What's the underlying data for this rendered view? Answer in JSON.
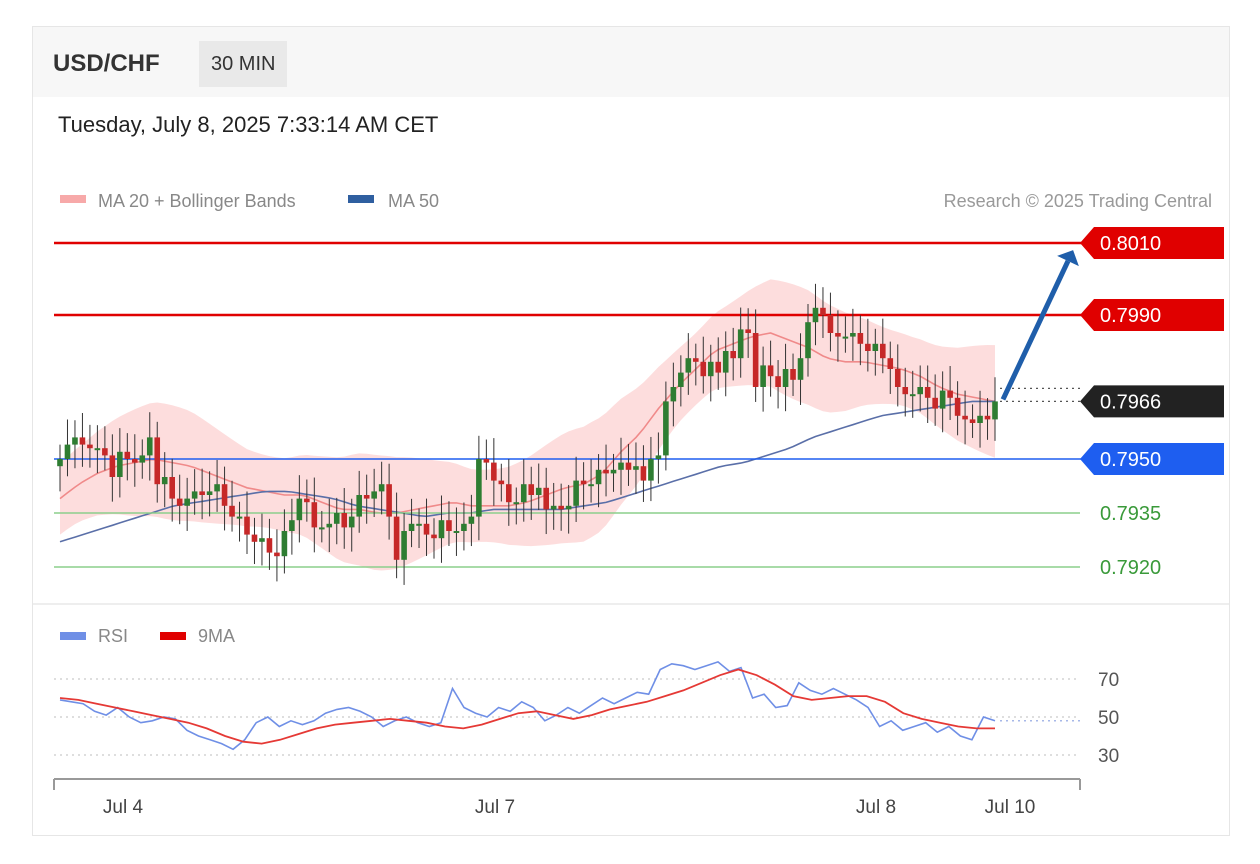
{
  "header": {
    "symbol": "USD/CHF",
    "interval": "30 MIN",
    "datetime": "Tuesday, July 8, 2025 7:33:14 AM CET"
  },
  "credit": "Research © 2025 Trading Central",
  "legend": {
    "ma20": "MA 20 + Bollinger Bands",
    "ma50": "MA 50",
    "rsi": "RSI",
    "rsi_ma": "9MA"
  },
  "colors": {
    "up_candle": "#2e7d32",
    "down_candle": "#c62828",
    "resistance": "#e00000",
    "support": "#1e5ef0",
    "target": "#1f5eaa",
    "minor_support": "#8ccf8c",
    "last_price": "#222222",
    "bollinger_fill": "#fdd9d9",
    "ma20_line": "#f08a8a",
    "ma50_line": "#5a6fa8",
    "rsi_line": "#6f8fe6",
    "rsi_ma_line": "#e53935"
  },
  "chart_data": [
    {
      "type": "candlestick",
      "title": "USD/CHF 30 MIN",
      "ylim": [
        0.7913,
        0.8017
      ],
      "x_tick_labels": [
        "Jul 4",
        "Jul 7",
        "Jul 8",
        "Jul 10"
      ],
      "levels": [
        {
          "label": "0.8010",
          "value": 0.801,
          "kind": "resistance"
        },
        {
          "label": "0.7990",
          "value": 0.799,
          "kind": "resistance"
        },
        {
          "label": "0.7966",
          "value": 0.7966,
          "kind": "last"
        },
        {
          "label": "0.7950",
          "value": 0.795,
          "kind": "support"
        },
        {
          "label": "0.7935",
          "value": 0.7935,
          "kind": "minor"
        },
        {
          "label": "0.7920",
          "value": 0.792,
          "kind": "minor"
        }
      ],
      "target_arrow": {
        "from": 0.7966,
        "to": 0.801
      },
      "close": [
        0.795,
        0.7954,
        0.7956,
        0.7954,
        0.7953,
        0.7953,
        0.7951,
        0.7945,
        0.7952,
        0.795,
        0.7949,
        0.7951,
        0.7956,
        0.7943,
        0.7945,
        0.7939,
        0.7937,
        0.7939,
        0.7941,
        0.794,
        0.7941,
        0.7943,
        0.7937,
        0.7934,
        0.7934,
        0.7929,
        0.7927,
        0.7928,
        0.7924,
        0.7923,
        0.793,
        0.7933,
        0.7939,
        0.7938,
        0.7931,
        0.7931,
        0.7932,
        0.7935,
        0.7931,
        0.7934,
        0.794,
        0.7939,
        0.7941,
        0.7943,
        0.7934,
        0.7922,
        0.793,
        0.7932,
        0.7932,
        0.7929,
        0.7928,
        0.7933,
        0.793,
        0.793,
        0.7932,
        0.7934,
        0.795,
        0.7949,
        0.7944,
        0.7943,
        0.7938,
        0.7938,
        0.7943,
        0.794,
        0.7942,
        0.7936,
        0.7937,
        0.7936,
        0.7937,
        0.7944,
        0.7943,
        0.7943,
        0.7947,
        0.7946,
        0.7947,
        0.7949,
        0.7947,
        0.7948,
        0.7944,
        0.795,
        0.7951,
        0.7966,
        0.797,
        0.7974,
        0.7978,
        0.7977,
        0.7973,
        0.7977,
        0.7974,
        0.798,
        0.7978,
        0.7986,
        0.7985,
        0.797,
        0.7976,
        0.7973,
        0.797,
        0.7975,
        0.7972,
        0.7978,
        0.7988,
        0.7992,
        0.799,
        0.7985,
        0.7984,
        0.7984,
        0.7985,
        0.7982,
        0.798,
        0.7982,
        0.7978,
        0.7975,
        0.797,
        0.7968,
        0.7968,
        0.797,
        0.7967,
        0.7964,
        0.7969,
        0.7967,
        0.7962,
        0.7961,
        0.796,
        0.7962,
        0.7961,
        0.7966
      ],
      "series": [
        {
          "name": "MA 20",
          "values": [
            0.7939,
            0.7943,
            0.7946,
            0.7948,
            0.7949,
            0.795,
            0.7949,
            0.7948,
            0.7946,
            0.7944,
            0.7942,
            0.7941,
            0.794,
            0.794,
            0.7938,
            0.7936,
            0.7936,
            0.7935,
            0.7935,
            0.7936,
            0.7937,
            0.7938,
            0.7937,
            0.7937,
            0.7937,
            0.7938,
            0.794,
            0.7942,
            0.7943,
            0.7946,
            0.7952,
            0.7957,
            0.7964,
            0.797,
            0.7975,
            0.798,
            0.7982,
            0.7984,
            0.7985,
            0.7983,
            0.7981,
            0.7978,
            0.7977,
            0.7977,
            0.7976,
            0.7975,
            0.7973,
            0.797,
            0.7968,
            0.7967,
            0.7966
          ]
        },
        {
          "name": "MA 50",
          "values": [
            0.7927,
            0.7929,
            0.7931,
            0.7933,
            0.7935,
            0.7937,
            0.7938,
            0.7939,
            0.794,
            0.7941,
            0.7941,
            0.794,
            0.7939,
            0.7937,
            0.7936,
            0.7935,
            0.7934,
            0.7935,
            0.7935,
            0.7936,
            0.7936,
            0.7936,
            0.7936,
            0.7937,
            0.7938,
            0.794,
            0.7942,
            0.7944,
            0.7946,
            0.7948,
            0.7949,
            0.7951,
            0.7953,
            0.7956,
            0.7958,
            0.796,
            0.7962,
            0.7963,
            0.7964,
            0.7965,
            0.7966,
            0.7966
          ]
        },
        {
          "name": "RSI",
          "values": [
            59,
            58,
            57,
            53,
            51,
            55,
            50,
            47,
            48,
            50,
            49,
            43,
            40,
            38,
            36,
            33,
            38,
            47,
            50,
            45,
            48,
            46,
            48,
            52,
            54,
            55,
            53,
            50,
            45,
            48,
            50,
            47,
            45,
            47,
            65,
            55,
            52,
            50,
            55,
            53,
            58,
            55,
            48,
            51,
            55,
            52,
            56,
            60,
            57,
            60,
            63,
            62,
            75,
            78,
            77,
            75,
            77,
            79,
            74,
            76,
            60,
            62,
            55,
            56,
            68,
            64,
            62,
            65,
            62,
            59,
            55,
            45,
            48,
            43,
            45,
            47,
            42,
            45,
            40,
            38,
            50,
            48
          ]
        },
        {
          "name": "9MA",
          "values": [
            60,
            59,
            57,
            55,
            53,
            51,
            49,
            47,
            44,
            40,
            37,
            36,
            38,
            41,
            44,
            46,
            47,
            48,
            49,
            48,
            47,
            45,
            44,
            46,
            49,
            52,
            53,
            51,
            49,
            51,
            54,
            56,
            58,
            61,
            64,
            68,
            72,
            75,
            72,
            67,
            61,
            59,
            60,
            61,
            61,
            58,
            52,
            49,
            47,
            45,
            44,
            44
          ]
        }
      ]
    },
    {
      "type": "line",
      "title": "",
      "ylim": [
        20,
        90
      ],
      "y_tick_labels": [
        "70",
        "50",
        "30"
      ]
    }
  ]
}
